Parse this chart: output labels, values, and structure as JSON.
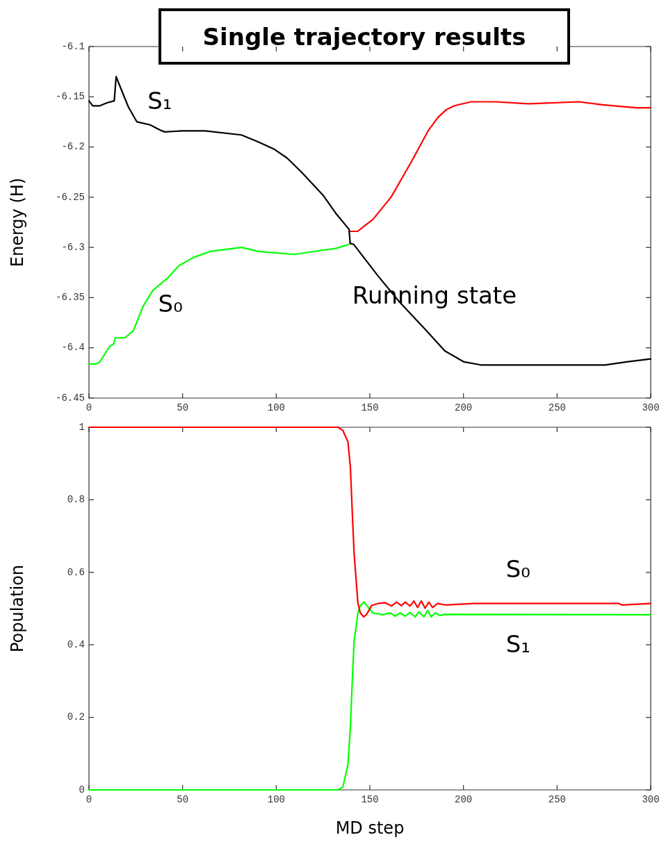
{
  "chart_data": [
    {
      "type": "line",
      "title": "Single trajectory results",
      "ylabel": "Energy (H)",
      "xlim": [
        0,
        300
      ],
      "xticks": [
        0,
        50,
        100,
        150,
        200,
        250,
        300
      ],
      "ylim": [
        -6.45,
        -6.1
      ],
      "yticks": [
        -6.45,
        -6.4,
        -6.35,
        -6.3,
        -6.25,
        -6.2,
        -6.15,
        -6.1
      ],
      "series": [
        {
          "color": "#000000",
          "x": [
            0,
            2,
            5.8,
            9.6,
            13.5,
            14.5,
            16,
            21,
            25.6,
            32.7,
            37.8,
            40.4,
            49.4,
            62,
            81.4,
            90.4,
            98.7,
            105.8,
            113.5,
            125,
            131.8,
            138.9,
            139.5,
            141.4,
            154.2,
            165.7,
            179.8,
            190,
            200.3,
            209.2,
            237.3,
            255.2,
            275.7,
            287.2,
            300
          ],
          "values": [
            -6.154,
            -6.159,
            -6.159,
            -6.156,
            -6.154,
            -6.13,
            -6.137,
            -6.16,
            -6.175,
            -6.178,
            -6.183,
            -6.185,
            -6.184,
            -6.184,
            -6.188,
            -6.195,
            -6.202,
            -6.211,
            -6.225,
            -6.248,
            -6.266,
            -6.282,
            -6.296,
            -6.297,
            -6.328,
            -6.354,
            -6.382,
            -6.403,
            -6.414,
            -6.417,
            -6.417,
            -6.417,
            -6.417,
            -6.414,
            -6.411
          ]
        },
        {
          "color": "#ff0000",
          "x": [
            139.5,
            143.4,
            151.7,
            161.3,
            172.1,
            181.1,
            186.2,
            190.7,
            195.1,
            204.1,
            216.9,
            234.8,
            261.6,
            274.4,
            292.3,
            300
          ],
          "values": [
            -6.284,
            -6.284,
            -6.272,
            -6.25,
            -6.215,
            -6.184,
            -6.171,
            -6.163,
            -6.159,
            -6.155,
            -6.155,
            -6.157,
            -6.155,
            -6.158,
            -6.161,
            -6.161
          ]
        },
        {
          "color": "#00ff00",
          "x": [
            0,
            3.8,
            5.8,
            10.9,
            13.2,
            14.1,
            19.2,
            23.7,
            28.8,
            34,
            41.7,
            48.1,
            55.8,
            64.7,
            81.4,
            90.4,
            109.6,
            123.7,
            131.8,
            138.9
          ],
          "values": [
            -6.416,
            -6.416,
            -6.414,
            -6.399,
            -6.396,
            -6.39,
            -6.39,
            -6.383,
            -6.359,
            -6.343,
            -6.331,
            -6.318,
            -6.31,
            -6.304,
            -6.3,
            -6.304,
            -6.307,
            -6.303,
            -6.301,
            -6.297
          ]
        }
      ],
      "annotations": [
        "S₁",
        "S₀",
        "Running state"
      ]
    },
    {
      "type": "line",
      "xlabel": "MD step",
      "ylabel": "Population",
      "xlim": [
        0,
        300
      ],
      "xticks": [
        0,
        50,
        100,
        150,
        200,
        250,
        300
      ],
      "ylim": [
        0,
        1
      ],
      "yticks": [
        0,
        0.2,
        0.4,
        0.6,
        0.8,
        1
      ],
      "series": [
        {
          "color": "#ff0000",
          "x": [
            0,
            133,
            135.6,
            138.3,
            139.6,
            140.7,
            141.6,
            142.6,
            143.6,
            144.9,
            146.7,
            148.3,
            150.9,
            154.3,
            158.2,
            161.6,
            164.2,
            166.9,
            168.9,
            171.5,
            173.5,
            175.5,
            177.5,
            179.5,
            181.5,
            183.5,
            186.2,
            190.2,
            206,
            283,
            284.6,
            300
          ],
          "values": [
            1,
            1,
            0.991,
            0.96,
            0.89,
            0.755,
            0.652,
            0.584,
            0.516,
            0.488,
            0.477,
            0.484,
            0.508,
            0.514,
            0.516,
            0.507,
            0.518,
            0.508,
            0.518,
            0.507,
            0.521,
            0.503,
            0.521,
            0.501,
            0.518,
            0.503,
            0.514,
            0.51,
            0.514,
            0.514,
            0.51,
            0.514
          ]
        },
        {
          "color": "#00ff00",
          "x": [
            0,
            133,
            135.6,
            138.3,
            139.6,
            140.7,
            141.6,
            142.6,
            143.6,
            144.9,
            146.9,
            148.9,
            151.6,
            156.9,
            160.9,
            163.6,
            166.2,
            168.9,
            171.5,
            174.2,
            176.2,
            178.9,
            180.9,
            182.8,
            184.8,
            187.5,
            190.2,
            300
          ],
          "values": [
            0,
            0,
            0.008,
            0.07,
            0.173,
            0.31,
            0.412,
            0.447,
            0.488,
            0.508,
            0.518,
            0.505,
            0.488,
            0.483,
            0.488,
            0.479,
            0.488,
            0.479,
            0.489,
            0.477,
            0.491,
            0.477,
            0.495,
            0.477,
            0.488,
            0.481,
            0.484,
            0.483
          ]
        }
      ],
      "annotations": [
        "S₀",
        "S₁"
      ]
    }
  ]
}
